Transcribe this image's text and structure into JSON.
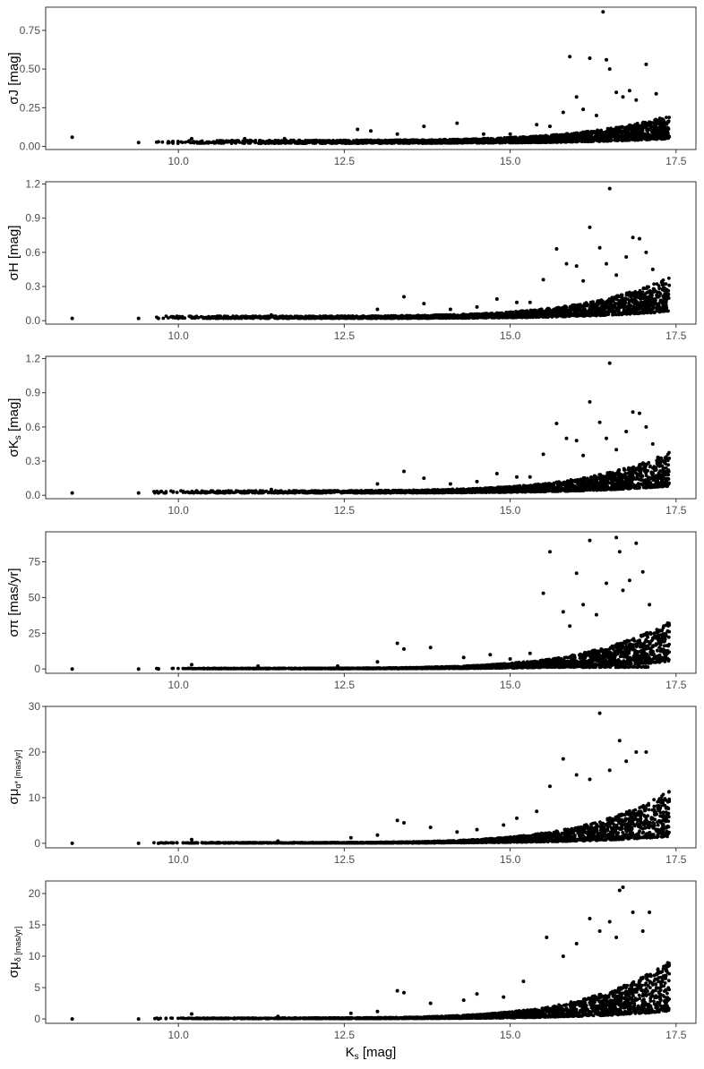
{
  "chart_data": [
    {
      "type": "scatter",
      "id": "sigma-J",
      "ylabel": "σJ [mag]",
      "xlim": [
        8.0,
        17.8
      ],
      "ylim": [
        -0.02,
        0.9
      ],
      "xticks": [
        10.0,
        12.5,
        15.0,
        17.5
      ],
      "xtick_labels": [
        "10.0",
        "12.5",
        "15.0",
        "17.5"
      ],
      "yticks": [
        0.0,
        0.25,
        0.5,
        0.75
      ],
      "ytick_labels": [
        "0.00",
        "0.25",
        "0.50",
        "0.75"
      ],
      "grid": false,
      "points": [
        [
          8.4,
          0.06
        ],
        [
          9.4,
          0.025
        ],
        [
          9.7,
          0.03
        ],
        [
          10.2,
          0.05
        ],
        [
          11.0,
          0.05
        ],
        [
          11.6,
          0.05
        ],
        [
          12.7,
          0.11
        ],
        [
          12.9,
          0.1
        ],
        [
          13.3,
          0.08
        ],
        [
          13.7,
          0.13
        ],
        [
          14.2,
          0.15
        ],
        [
          14.6,
          0.08
        ],
        [
          15.0,
          0.08
        ],
        [
          15.4,
          0.14
        ],
        [
          15.6,
          0.13
        ],
        [
          15.8,
          0.22
        ],
        [
          15.9,
          0.58
        ],
        [
          16.0,
          0.32
        ],
        [
          16.1,
          0.24
        ],
        [
          16.2,
          0.57
        ],
        [
          16.3,
          0.2
        ],
        [
          16.4,
          0.87
        ],
        [
          16.45,
          0.56
        ],
        [
          16.5,
          0.5
        ],
        [
          16.6,
          0.35
        ],
        [
          16.7,
          0.32
        ],
        [
          16.8,
          0.36
        ],
        [
          16.9,
          0.3
        ],
        [
          17.05,
          0.53
        ],
        [
          17.2,
          0.34
        ]
      ],
      "envelope": {
        "x_start": 9.6,
        "x_end": 17.4,
        "base_start": 0.02,
        "base_end": 0.05,
        "width_start": 0.02,
        "width_end": 0.15
      }
    },
    {
      "type": "scatter",
      "id": "sigma-H",
      "ylabel": "σH [mag]",
      "xlim": [
        8.0,
        17.8
      ],
      "ylim": [
        -0.03,
        1.22
      ],
      "xticks": [
        10.0,
        12.5,
        15.0,
        17.5
      ],
      "xtick_labels": [
        "10.0",
        "12.5",
        "15.0",
        "17.5"
      ],
      "yticks": [
        0.0,
        0.3,
        0.6,
        0.9,
        1.2
      ],
      "ytick_labels": [
        "0.0",
        "0.3",
        "0.6",
        "0.9",
        "1.2"
      ],
      "grid": false,
      "points": [
        [
          8.4,
          0.02
        ],
        [
          9.4,
          0.02
        ],
        [
          9.7,
          0.02
        ],
        [
          10.5,
          0.03
        ],
        [
          11.4,
          0.05
        ],
        [
          12.4,
          0.04
        ],
        [
          13.0,
          0.1
        ],
        [
          13.4,
          0.21
        ],
        [
          13.7,
          0.15
        ],
        [
          14.1,
          0.1
        ],
        [
          14.5,
          0.12
        ],
        [
          14.8,
          0.19
        ],
        [
          15.1,
          0.16
        ],
        [
          15.3,
          0.16
        ],
        [
          15.5,
          0.36
        ],
        [
          15.7,
          0.63
        ],
        [
          15.85,
          0.5
        ],
        [
          16.0,
          0.48
        ],
        [
          16.1,
          0.35
        ],
        [
          16.2,
          0.82
        ],
        [
          16.35,
          0.64
        ],
        [
          16.45,
          0.5
        ],
        [
          16.5,
          1.16
        ],
        [
          16.6,
          0.4
        ],
        [
          16.75,
          0.56
        ],
        [
          16.85,
          0.73
        ],
        [
          16.95,
          0.72
        ],
        [
          17.05,
          0.6
        ],
        [
          17.15,
          0.45
        ]
      ],
      "envelope": {
        "x_start": 9.6,
        "x_end": 17.4,
        "base_start": 0.02,
        "base_end": 0.08,
        "width_start": 0.02,
        "width_end": 0.3
      }
    },
    {
      "type": "scatter",
      "id": "sigma-Ks",
      "ylabel": "σKs [mag]",
      "ylabel_main": "σK",
      "ylabel_sub": "s",
      "ylabel_tail": " [mag]",
      "xlim": [
        8.0,
        17.8
      ],
      "ylim": [
        -0.03,
        1.22
      ],
      "xticks": [
        10.0,
        12.5,
        15.0,
        17.5
      ],
      "xtick_labels": [
        "10.0",
        "12.5",
        "15.0",
        "17.5"
      ],
      "yticks": [
        0.0,
        0.3,
        0.6,
        0.9,
        1.2
      ],
      "ytick_labels": [
        "0.0",
        "0.3",
        "0.6",
        "0.9",
        "1.2"
      ],
      "grid": false,
      "points": [
        [
          8.4,
          0.02
        ],
        [
          9.4,
          0.02
        ],
        [
          9.7,
          0.02
        ],
        [
          10.5,
          0.03
        ],
        [
          11.4,
          0.05
        ],
        [
          12.4,
          0.04
        ],
        [
          13.0,
          0.1
        ],
        [
          13.4,
          0.21
        ],
        [
          13.7,
          0.15
        ],
        [
          14.1,
          0.1
        ],
        [
          14.5,
          0.12
        ],
        [
          14.8,
          0.19
        ],
        [
          15.1,
          0.16
        ],
        [
          15.3,
          0.16
        ],
        [
          15.5,
          0.36
        ],
        [
          15.7,
          0.63
        ],
        [
          15.85,
          0.5
        ],
        [
          16.0,
          0.48
        ],
        [
          16.1,
          0.35
        ],
        [
          16.2,
          0.82
        ],
        [
          16.35,
          0.64
        ],
        [
          16.45,
          0.5
        ],
        [
          16.5,
          1.16
        ],
        [
          16.6,
          0.4
        ],
        [
          16.75,
          0.56
        ],
        [
          16.85,
          0.73
        ],
        [
          16.95,
          0.72
        ],
        [
          17.05,
          0.6
        ],
        [
          17.15,
          0.45
        ]
      ],
      "envelope": {
        "x_start": 9.6,
        "x_end": 17.4,
        "base_start": 0.02,
        "base_end": 0.08,
        "width_start": 0.02,
        "width_end": 0.3
      }
    },
    {
      "type": "scatter",
      "id": "sigma-pi",
      "ylabel": "σπ [mas/yr]",
      "xlim": [
        8.0,
        17.8
      ],
      "ylim": [
        -3,
        96
      ],
      "xticks": [
        10.0,
        12.5,
        15.0,
        17.5
      ],
      "xtick_labels": [
        "10.0",
        "12.5",
        "15.0",
        "17.5"
      ],
      "yticks": [
        0,
        25,
        50,
        75
      ],
      "ytick_labels": [
        "0",
        "25",
        "50",
        "75"
      ],
      "grid": false,
      "points": [
        [
          8.4,
          0
        ],
        [
          9.4,
          0
        ],
        [
          9.7,
          0
        ],
        [
          10.2,
          3
        ],
        [
          11.2,
          2
        ],
        [
          12.4,
          2
        ],
        [
          13.0,
          5
        ],
        [
          13.3,
          18
        ],
        [
          13.4,
          14
        ],
        [
          13.8,
          15
        ],
        [
          14.3,
          8
        ],
        [
          14.7,
          10
        ],
        [
          15.0,
          7
        ],
        [
          15.3,
          11
        ],
        [
          15.5,
          53
        ],
        [
          15.6,
          82
        ],
        [
          15.8,
          40
        ],
        [
          15.9,
          30
        ],
        [
          16.0,
          67
        ],
        [
          16.1,
          45
        ],
        [
          16.2,
          90
        ],
        [
          16.3,
          38
        ],
        [
          16.45,
          60
        ],
        [
          16.6,
          92
        ],
        [
          16.65,
          82
        ],
        [
          16.7,
          55
        ],
        [
          16.8,
          62
        ],
        [
          16.9,
          88
        ],
        [
          17.0,
          68
        ],
        [
          17.1,
          45
        ]
      ],
      "envelope": {
        "x_start": 9.6,
        "x_end": 17.4,
        "base_start": 0.2,
        "base_end": 5,
        "width_start": 0.3,
        "width_end": 28
      },
      "floor_band": {
        "x_start": 15.0,
        "x_end": 17.1,
        "y": 1.5
      }
    },
    {
      "type": "scatter",
      "id": "sigma-mu-alpha",
      "ylabel_main": "σμ",
      "ylabel_sub": "α* [mas/yr]",
      "xlim": [
        8.0,
        17.8
      ],
      "ylim": [
        -1,
        30
      ],
      "xticks": [
        10.0,
        12.5,
        15.0,
        17.5
      ],
      "xtick_labels": [
        "10.0",
        "12.5",
        "15.0",
        "17.5"
      ],
      "yticks": [
        0,
        10,
        20,
        30
      ],
      "ytick_labels": [
        "0",
        "10",
        "20",
        "30"
      ],
      "grid": false,
      "points": [
        [
          8.4,
          0
        ],
        [
          9.4,
          0
        ],
        [
          9.7,
          0
        ],
        [
          10.2,
          0.8
        ],
        [
          11.5,
          0.5
        ],
        [
          12.6,
          1.2
        ],
        [
          13.0,
          1.8
        ],
        [
          13.3,
          5
        ],
        [
          13.4,
          4.5
        ],
        [
          13.8,
          3.5
        ],
        [
          14.2,
          2.5
        ],
        [
          14.5,
          3
        ],
        [
          14.9,
          4
        ],
        [
          15.1,
          5.5
        ],
        [
          15.4,
          7
        ],
        [
          15.6,
          12.5
        ],
        [
          15.8,
          18.5
        ],
        [
          16.0,
          15
        ],
        [
          16.2,
          14
        ],
        [
          16.35,
          28.5
        ],
        [
          16.5,
          16
        ],
        [
          16.65,
          22.5
        ],
        [
          16.75,
          18
        ],
        [
          16.9,
          20
        ],
        [
          17.05,
          20
        ]
      ],
      "envelope": {
        "x_start": 9.6,
        "x_end": 17.4,
        "base_start": 0.05,
        "base_end": 1.5,
        "width_start": 0.1,
        "width_end": 10
      }
    },
    {
      "type": "scatter",
      "id": "sigma-mu-delta",
      "ylabel_main": "σμ",
      "ylabel_sub": "δ [mas/yr]",
      "xlabel_main": "K",
      "xlabel_sub": "s",
      "xlabel_tail": " [mag]",
      "xlim": [
        8.0,
        17.8
      ],
      "ylim": [
        -0.7,
        22
      ],
      "xticks": [
        10.0,
        12.5,
        15.0,
        17.5
      ],
      "xtick_labels": [
        "10.0",
        "12.5",
        "15.0",
        "17.5"
      ],
      "yticks": [
        0,
        5,
        10,
        15,
        20
      ],
      "ytick_labels": [
        "0",
        "5",
        "10",
        "15",
        "20"
      ],
      "grid": false,
      "points": [
        [
          8.4,
          0
        ],
        [
          9.4,
          0
        ],
        [
          9.7,
          0
        ],
        [
          10.2,
          0.8
        ],
        [
          11.5,
          0.4
        ],
        [
          12.6,
          0.9
        ],
        [
          13.0,
          1.2
        ],
        [
          13.3,
          4.5
        ],
        [
          13.4,
          4.2
        ],
        [
          13.8,
          2.5
        ],
        [
          14.3,
          3
        ],
        [
          14.5,
          4
        ],
        [
          14.9,
          3.5
        ],
        [
          15.2,
          6
        ],
        [
          15.55,
          13
        ],
        [
          15.8,
          10
        ],
        [
          16.0,
          12
        ],
        [
          16.2,
          16
        ],
        [
          16.35,
          14
        ],
        [
          16.5,
          15.5
        ],
        [
          16.6,
          13
        ],
        [
          16.65,
          20.5
        ],
        [
          16.7,
          21
        ],
        [
          16.85,
          17
        ],
        [
          17.0,
          14
        ],
        [
          17.1,
          17
        ]
      ],
      "envelope": {
        "x_start": 9.6,
        "x_end": 17.4,
        "base_start": 0.05,
        "base_end": 1.2,
        "width_start": 0.1,
        "width_end": 8
      }
    }
  ]
}
